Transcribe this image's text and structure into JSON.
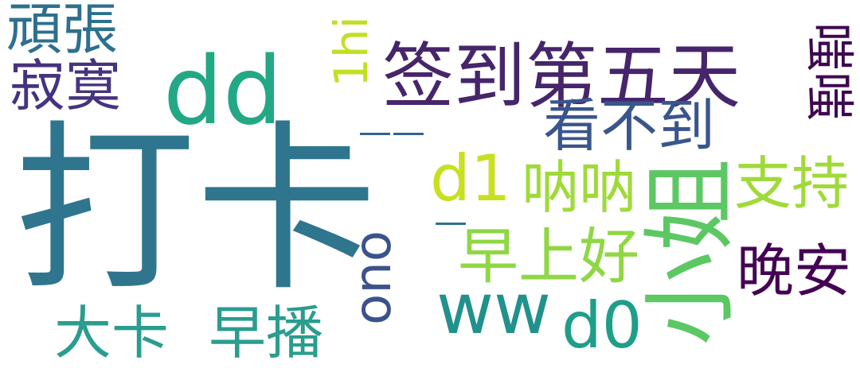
{
  "words": [
    {
      "text": "打卡",
      "color": "#2f758e"
    },
    {
      "text": "签到第五天",
      "color": "#46256b"
    },
    {
      "text": "dd",
      "color": "#22a884"
    },
    {
      "text": "小姐",
      "color": "#5cc863"
    },
    {
      "text": "看不到",
      "color": "#39568c"
    },
    {
      "text": "大卡",
      "color": "#2a9d8f"
    },
    {
      "text": "早播",
      "color": "#2a9d8f"
    },
    {
      "text": "寂寞",
      "color": "#46337f"
    },
    {
      "text": "頑張",
      "color": "#2d708e"
    },
    {
      "text": "早上好",
      "color": "#8fd744"
    },
    {
      "text": "呐呐",
      "color": "#9fda3a"
    },
    {
      "text": "支持",
      "color": "#a0da39"
    },
    {
      "text": "晚安",
      "color": "#440154"
    },
    {
      "text": "d0",
      "color": "#1f9e89"
    },
    {
      "text": "ww",
      "color": "#21918c"
    },
    {
      "text": "d1",
      "color": "#c8e020"
    },
    {
      "text": "ouo",
      "color": "#3b528b"
    },
    {
      "text": "1hi",
      "color": "#c2df23"
    },
    {
      "text": "嗤嗤",
      "color": "#3e0751"
    },
    {
      "text": "——",
      "color": "#32648e"
    },
    {
      "text": "—",
      "color": "#2d708e"
    }
  ]
}
